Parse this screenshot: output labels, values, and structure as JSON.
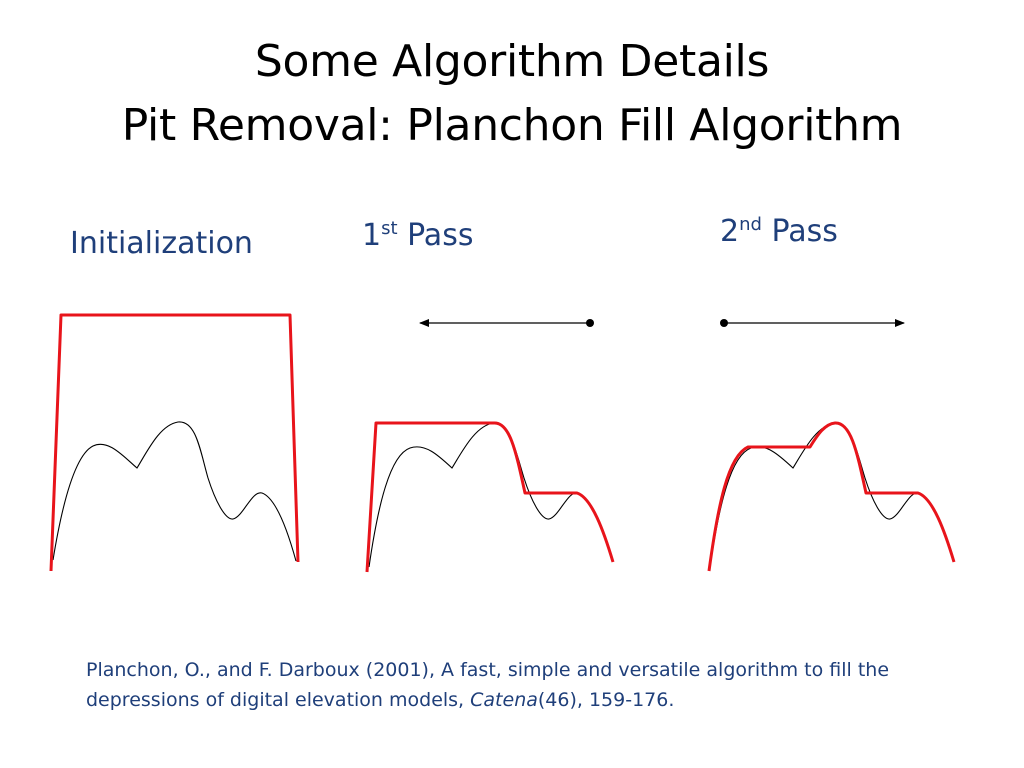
{
  "title": {
    "line1": "Some Algorithm Details",
    "line2": "Pit Removal: Planchon Fill Algorithm"
  },
  "panels": {
    "init": {
      "label": "Initialization"
    },
    "pass1": {
      "label_num": "1",
      "label_sup": "st",
      "label_rest": " Pass"
    },
    "pass2": {
      "label_num": "2",
      "label_sup": "nd",
      "label_rest": " Pass"
    }
  },
  "citation": {
    "text_before": "Planchon, O., and F. Darboux (2001), A fast, simple and versatile algorithm to fill the depressions of digital elevation models, ",
    "journal": "Catena",
    "text_after": "(46), 159-176."
  },
  "colors": {
    "fill_line": "#e8141b",
    "terrain_line": "#000000",
    "label_text": "#1f3f7a"
  }
}
